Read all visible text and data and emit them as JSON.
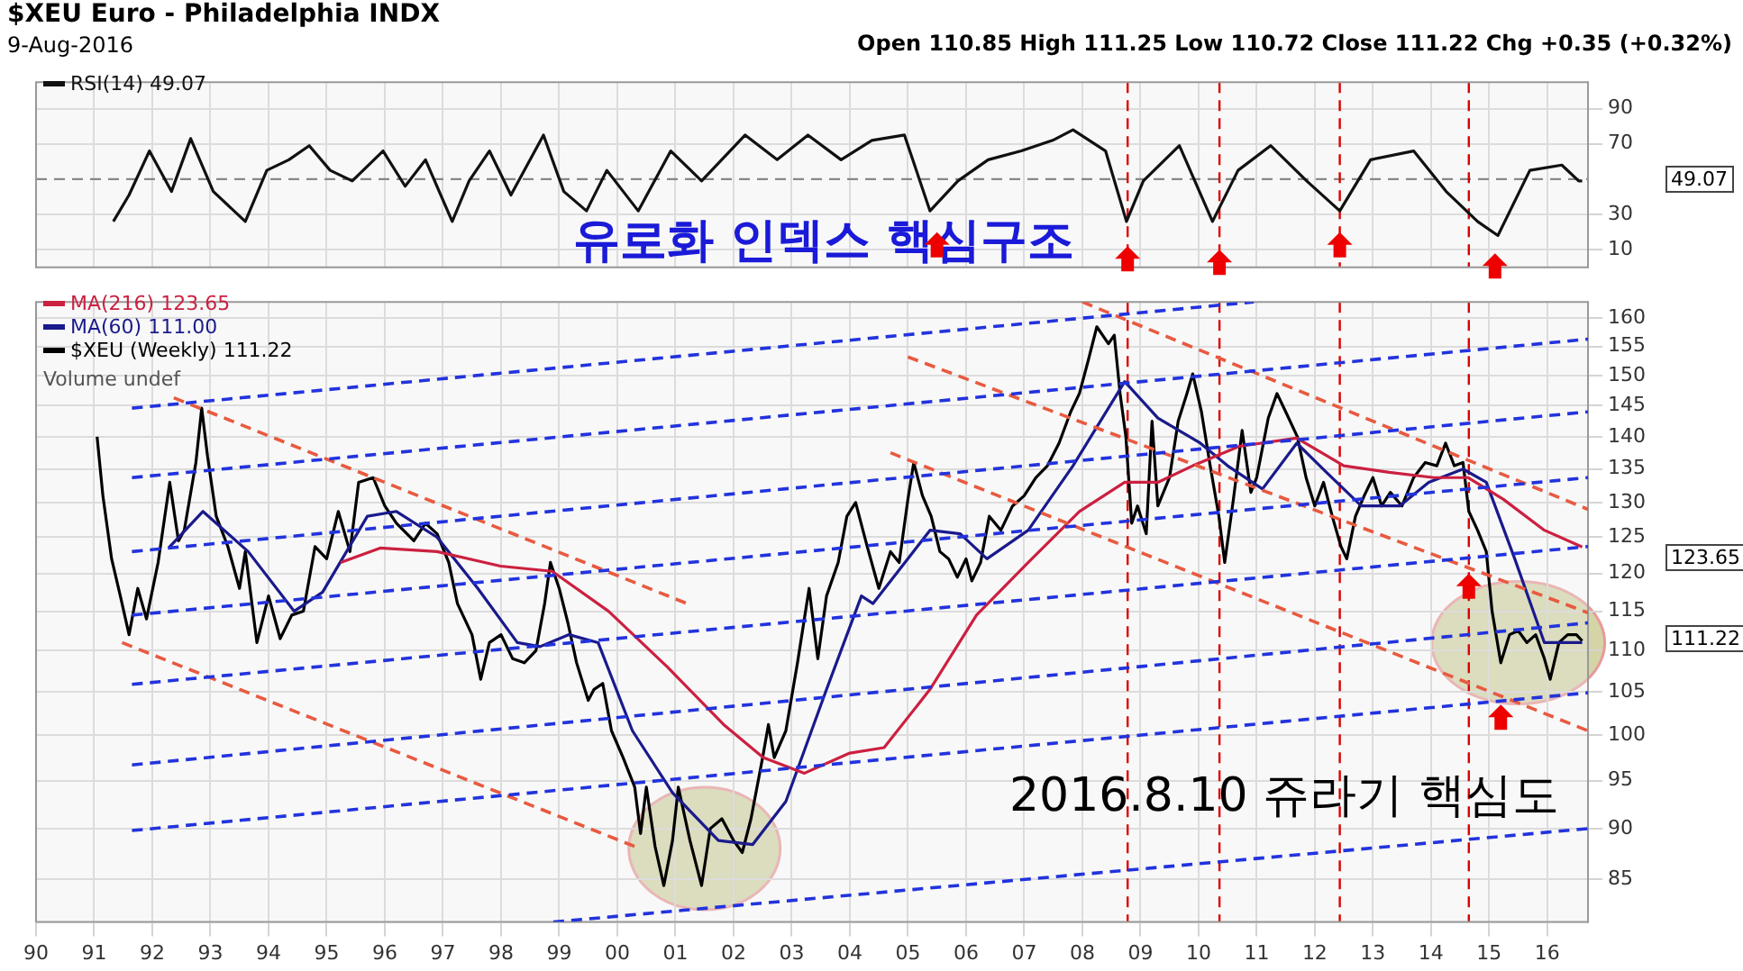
{
  "chart_data": [
    {
      "type": "line",
      "title": "$XEU Euro - Philadelphia INDX",
      "subtitle": "9-Aug-2016",
      "annotations": [
        "Open 110.85 High 111.25 Low 110.72 Close 111.22 Chg +0.35 (+0.32%)",
        "유로화 인덱스 핵심구조",
        "49.07"
      ],
      "series": [
        {
          "name": "RSI(14) 49.07",
          "color": "#111111",
          "x": [
            1991.33,
            1991.6,
            1991.95,
            1992.33,
            1992.66,
            1993.05,
            1993.6,
            1993.97,
            1994.35,
            1994.7,
            1995.06,
            1995.44,
            1995.97,
            1996.35,
            1996.7,
            1997.16,
            1997.45,
            1997.8,
            1998.17,
            1998.73,
            1999.08,
            1999.47,
            1999.82,
            2000.36,
            2000.92,
            2001.45,
            2002.2,
            2002.75,
            2003.28,
            2003.85,
            2004.38,
            2004.94,
            2005.38,
            2005.86,
            2006.38,
            2006.95,
            2007.49,
            2007.84,
            2008.4,
            2008.76,
            2009.05,
            2009.67,
            2010.24,
            2010.68,
            2011.24,
            2011.86,
            2012.43,
            2012.96,
            2013.7,
            2014.26,
            2014.8,
            2015.15,
            2015.7,
            2016.25,
            2016.54,
            2016.6
          ],
          "values": [
            26,
            41,
            66,
            43,
            73,
            43,
            26,
            55,
            61,
            69,
            55,
            49,
            66,
            46,
            61,
            26,
            49,
            66,
            41,
            75,
            43,
            32,
            55,
            32,
            66,
            49,
            75,
            61,
            75,
            61,
            72,
            75,
            32,
            49,
            61,
            66,
            72,
            78,
            66,
            26,
            49,
            69,
            26,
            55,
            69,
            49,
            32,
            61,
            66,
            43,
            26,
            18,
            55,
            58,
            49,
            49
          ]
        }
      ],
      "xlim": [
        1990,
        2016.7
      ],
      "xticks": [
        {
          "value": 1990,
          "label": null
        },
        {
          "value": 1991,
          "label": null
        },
        {
          "value": 1992,
          "label": null
        },
        {
          "value": 1993,
          "label": null
        },
        {
          "value": 1994,
          "label": null
        },
        {
          "value": 1995,
          "label": null
        },
        {
          "value": 1996,
          "label": null
        },
        {
          "value": 1997,
          "label": null
        },
        {
          "value": 1998,
          "label": null
        },
        {
          "value": 1999,
          "label": null
        },
        {
          "value": 2000,
          "label": null
        },
        {
          "value": 2001,
          "label": null
        },
        {
          "value": 2002,
          "label": null
        },
        {
          "value": 2003,
          "label": null
        },
        {
          "value": 2004,
          "label": null
        },
        {
          "value": 2005,
          "label": null
        },
        {
          "value": 2006,
          "label": null
        },
        {
          "value": 2007,
          "label": null
        },
        {
          "value": 2008,
          "label": null
        },
        {
          "value": 2009,
          "label": null
        },
        {
          "value": 2010,
          "label": null
        },
        {
          "value": 2011,
          "label": null
        },
        {
          "value": 2012,
          "label": null
        },
        {
          "value": 2013,
          "label": null
        },
        {
          "value": 2014,
          "label": null
        },
        {
          "value": 2015,
          "label": null
        },
        {
          "value": 2016,
          "label": null
        }
      ],
      "ylim": [
        0,
        105
      ],
      "yticks": [
        10,
        30,
        70,
        90
      ],
      "ref_lines": [
        {
          "axis": "y",
          "value": 50,
          "color": "#888888",
          "line_style": "dashed"
        },
        {
          "axis": "x",
          "value": 2008.78,
          "color": "#dd0000",
          "line_style": "dashed"
        },
        {
          "axis": "x",
          "value": 2010.36,
          "color": "#dd0000",
          "line_style": "dashed"
        },
        {
          "axis": "x",
          "value": 2012.43,
          "color": "#dd0000",
          "line_style": "dashed"
        },
        {
          "axis": "x",
          "value": 2014.65,
          "color": "#dd0000",
          "line_style": "dashed"
        }
      ],
      "grid": true,
      "legend": "top left",
      "tick_labels": "y",
      "marker": "none"
    },
    {
      "type": "line",
      "annotations": [
        "Volume undef",
        "2016.8.10 쥬라기 핵심도",
        "123.65",
        "111.22"
      ],
      "series": [
        {
          "type": "line",
          "color": "#2233dd",
          "line_style": "dashed",
          "x": [
            1991.65,
            2010.95
          ],
          "values": [
            144.6,
            163
          ]
        },
        {
          "type": "line",
          "color": "#2233dd",
          "line_style": "dashed",
          "x": [
            1991.65,
            2016.7
          ],
          "values": [
            133.7,
            156.3
          ]
        },
        {
          "type": "line",
          "color": "#2233dd",
          "line_style": "dashed",
          "x": [
            1991.65,
            2016.7
          ],
          "values": [
            123,
            144
          ]
        },
        {
          "type": "line",
          "color": "#2233dd",
          "line_style": "dashed",
          "x": [
            1991.65,
            2016.7
          ],
          "values": [
            114.5,
            133.7
          ]
        },
        {
          "type": "line",
          "color": "#2233dd",
          "line_style": "dashed",
          "x": [
            1991.65,
            2016.7
          ],
          "values": [
            105.9,
            123.7
          ]
        },
        {
          "type": "line",
          "color": "#2233dd",
          "line_style": "dashed",
          "x": [
            1991.65,
            2016.7
          ],
          "values": [
            96.7,
            113.5
          ]
        },
        {
          "type": "line",
          "color": "#2233dd",
          "line_style": "dashed",
          "x": [
            1991.65,
            2016.7
          ],
          "values": [
            89.8,
            104.9
          ]
        },
        {
          "type": "line",
          "color": "#2233dd",
          "line_style": "dashed",
          "x": [
            1998.9,
            2016.7
          ],
          "values": [
            81,
            90
          ]
        },
        {
          "type": "line",
          "color": "#e85a40",
          "line_style": "dashed",
          "x": [
            1992.37,
            2001.2
          ],
          "values": [
            146.3,
            116
          ]
        },
        {
          "type": "line",
          "color": "#e85a40",
          "line_style": "dashed",
          "x": [
            1991.48,
            2000.3
          ],
          "values": [
            111,
            88.2
          ]
        },
        {
          "type": "line",
          "color": "#e85a40",
          "line_style": "dashed",
          "x": [
            2004.7,
            2016.7
          ],
          "values": [
            137.5,
            100.5
          ]
        },
        {
          "type": "line",
          "color": "#e85a40",
          "line_style": "dashed",
          "x": [
            2005.0,
            2016.7
          ],
          "values": [
            153.2,
            114.8
          ]
        },
        {
          "type": "line",
          "color": "#e85a40",
          "line_style": "dashed",
          "x": [
            2008.0,
            2016.7
          ],
          "values": [
            163,
            129
          ]
        },
        {
          "name": "MA(216) 123.65",
          "color": "#cc2040",
          "x": [
            1995.24,
            1995.92,
            1996.9,
            1997.99,
            1998.88,
            1999.85,
            2000.86,
            2001.83,
            2002.51,
            2003.22,
            2004.0,
            2004.59,
            2005.38,
            2006.18,
            2007.07,
            2007.95,
            2008.73,
            2009.3,
            2009.9,
            2010.7,
            2011.69,
            2012.5,
            2013.28,
            2014.05,
            2014.64,
            2015.24,
            2015.95,
            2016.6
          ],
          "values": [
            121.5,
            123.5,
            123,
            121,
            120.3,
            115,
            108,
            101.2,
            97.5,
            95.8,
            98,
            98.6,
            105.3,
            114.5,
            121.5,
            128.7,
            133,
            133,
            135.5,
            138.5,
            139.8,
            135.5,
            134.5,
            133.7,
            133.7,
            130.5,
            126,
            123.65
          ]
        },
        {
          "name": "MA(60) 111.00",
          "color": "#1a1a8c",
          "x": [
            1992.28,
            1992.87,
            1993.65,
            1994.44,
            1994.93,
            1995.7,
            1996.2,
            1996.9,
            1997.6,
            1998.28,
            1998.67,
            1999.17,
            1999.67,
            2000.26,
            2000.95,
            2001.74,
            2002.33,
            2002.9,
            2003.6,
            2004.2,
            2004.4,
            2005.38,
            2005.9,
            2006.36,
            2007.07,
            2007.84,
            2008.73,
            2009.3,
            2010.03,
            2010.5,
            2011.1,
            2011.69,
            2012.2,
            2012.8,
            2013.46,
            2013.96,
            2014.55,
            2014.95,
            2015.44,
            2015.95,
            2016.42,
            2016.6
          ],
          "values": [
            123.5,
            128.7,
            123,
            115,
            117.5,
            128,
            128.7,
            125,
            118,
            111,
            110.5,
            112,
            111,
            100.5,
            93.7,
            88.8,
            88.4,
            92.8,
            105.3,
            117,
            116,
            126,
            125.5,
            122,
            126,
            135.5,
            149,
            143,
            139,
            135.5,
            132,
            139,
            134.5,
            129.5,
            129.5,
            133,
            135,
            133,
            122,
            111,
            111,
            111.0
          ]
        },
        {
          "name": "$XEU (Weekly) 111.22",
          "color": "#000000",
          "x": [
            1991.05,
            1991.15,
            1991.3,
            1991.45,
            1991.6,
            1991.75,
            1991.9,
            1992.1,
            1992.3,
            1992.45,
            1992.55,
            1992.75,
            1992.85,
            1992.95,
            1993.1,
            1993.3,
            1993.5,
            1993.6,
            1993.8,
            1994.0,
            1994.2,
            1994.4,
            1994.6,
            1994.8,
            1995.0,
            1995.2,
            1995.4,
            1995.55,
            1995.8,
            1996.0,
            1996.2,
            1996.5,
            1996.7,
            1996.9,
            1997.1,
            1997.25,
            1997.5,
            1997.65,
            1997.8,
            1998.0,
            1998.2,
            1998.4,
            1998.6,
            1998.75,
            1998.85,
            1999.0,
            1999.15,
            1999.3,
            1999.5,
            1999.6,
            1999.75,
            1999.9,
            2000.1,
            2000.3,
            2000.4,
            2000.5,
            2000.65,
            2000.8,
            2000.95,
            2001.05,
            2001.25,
            2001.45,
            2001.6,
            2001.8,
            2002.0,
            2002.15,
            2002.3,
            2002.5,
            2002.6,
            2002.7,
            2002.9,
            2003.1,
            2003.3,
            2003.45,
            2003.6,
            2003.8,
            2003.95,
            2004.1,
            2004.3,
            2004.5,
            2004.7,
            2004.85,
            2005.0,
            2005.1,
            2005.25,
            2005.4,
            2005.55,
            2005.7,
            2005.85,
            2006.0,
            2006.1,
            2006.25,
            2006.4,
            2006.6,
            2006.8,
            2007.0,
            2007.2,
            2007.4,
            2007.6,
            2007.8,
            2007.95,
            2008.1,
            2008.25,
            2008.45,
            2008.55,
            2008.65,
            2008.75,
            2008.85,
            2008.95,
            2009.1,
            2009.2,
            2009.3,
            2009.5,
            2009.65,
            2009.8,
            2009.9,
            2010.05,
            2010.2,
            2010.35,
            2010.45,
            2010.6,
            2010.75,
            2010.9,
            2011.0,
            2011.2,
            2011.35,
            2011.5,
            2011.7,
            2011.85,
            2012.0,
            2012.15,
            2012.3,
            2012.45,
            2012.55,
            2012.7,
            2012.85,
            2013.0,
            2013.15,
            2013.3,
            2013.5,
            2013.7,
            2013.9,
            2014.1,
            2014.25,
            2014.4,
            2014.55,
            2014.65,
            2014.8,
            2014.95,
            2015.05,
            2015.2,
            2015.35,
            2015.5,
            2015.65,
            2015.8,
            2015.95,
            2016.05,
            2016.2,
            2016.35,
            2016.5,
            2016.6
          ],
          "values": [
            140,
            131,
            122,
            117,
            112,
            118,
            114,
            121.5,
            133,
            124.5,
            126,
            136,
            144.6,
            137,
            128,
            123.7,
            118,
            123,
            111,
            117,
            111.5,
            114.5,
            115,
            123.7,
            122,
            128.7,
            123,
            133,
            133.7,
            129.5,
            127,
            124.5,
            127,
            125.5,
            121.5,
            116,
            112,
            106.5,
            111,
            112,
            109,
            108.5,
            110,
            116,
            121.5,
            118,
            113.5,
            108.5,
            104,
            105.3,
            106,
            100.5,
            97.5,
            94.3,
            89.5,
            94.3,
            88.2,
            84.4,
            88.8,
            94.3,
            88.8,
            84.4,
            90,
            91,
            88.8,
            87.6,
            91,
            97.5,
            101.2,
            97.5,
            100.5,
            108.5,
            118,
            109,
            117,
            121.5,
            128,
            130,
            123.7,
            118,
            123,
            121.5,
            130.5,
            136,
            131,
            128,
            123,
            122,
            119.5,
            122,
            119,
            121.5,
            128,
            126,
            129.5,
            131,
            133.7,
            135.5,
            139,
            144,
            147,
            152.5,
            158.5,
            155.5,
            157,
            147,
            140,
            127,
            129.5,
            125.5,
            142.5,
            129.5,
            133.7,
            142.5,
            147,
            150.3,
            144,
            135.5,
            128,
            121.5,
            130.5,
            141,
            131.5,
            133.7,
            143,
            147,
            144,
            140,
            133.7,
            129.5,
            133,
            128,
            123.7,
            122,
            128,
            131,
            133.7,
            129.5,
            131.5,
            129.5,
            133.7,
            136,
            135.5,
            139,
            135.5,
            136,
            128.7,
            126,
            123,
            115,
            108.5,
            112,
            112.5,
            111,
            112,
            109,
            106.5,
            111,
            112,
            112,
            111.22
          ]
        }
      ],
      "xlim": [
        1990,
        2016.7
      ],
      "xticks": [
        {
          "value": 1990,
          "label": "90"
        },
        {
          "value": 1991,
          "label": "91"
        },
        {
          "value": 1992,
          "label": "92"
        },
        {
          "value": 1993,
          "label": "93"
        },
        {
          "value": 1994,
          "label": "94"
        },
        {
          "value": 1995,
          "label": "95"
        },
        {
          "value": 1996,
          "label": "96"
        },
        {
          "value": 1997,
          "label": "97"
        },
        {
          "value": 1998,
          "label": "98"
        },
        {
          "value": 1999,
          "label": "99"
        },
        {
          "value": 2000,
          "label": "00"
        },
        {
          "value": 2001,
          "label": "01"
        },
        {
          "value": 2002,
          "label": "02"
        },
        {
          "value": 2003,
          "label": "03"
        },
        {
          "value": 2004,
          "label": "04"
        },
        {
          "value": 2005,
          "label": "05"
        },
        {
          "value": 2006,
          "label": "06"
        },
        {
          "value": 2007,
          "label": "07"
        },
        {
          "value": 2008,
          "label": "08"
        },
        {
          "value": 2009,
          "label": "09"
        },
        {
          "value": 2010,
          "label": "10"
        },
        {
          "value": 2011,
          "label": "11"
        },
        {
          "value": 2012,
          "label": "12"
        },
        {
          "value": 2013,
          "label": "13"
        },
        {
          "value": 2014,
          "label": "14"
        },
        {
          "value": 2015,
          "label": "15"
        },
        {
          "value": 2016,
          "label": "16"
        }
      ],
      "ylim": [
        81,
        163
      ],
      "yticks": [
        85,
        90,
        95,
        100,
        105,
        110,
        115,
        120,
        125,
        130,
        135,
        140,
        145,
        150,
        155,
        160
      ],
      "log": true,
      "ref_lines": [
        {
          "axis": "x",
          "value": 2008.78,
          "color": "#dd0000",
          "line_style": "dashed"
        },
        {
          "axis": "x",
          "value": 2010.36,
          "color": "#dd0000",
          "line_style": "dashed"
        },
        {
          "axis": "x",
          "value": 2012.43,
          "color": "#dd0000",
          "line_style": "dashed"
        },
        {
          "axis": "x",
          "value": 2014.65,
          "color": "#dd0000",
          "line_style": "dashed"
        }
      ],
      "grid": true,
      "legend": "top left",
      "marker": "none"
    }
  ]
}
